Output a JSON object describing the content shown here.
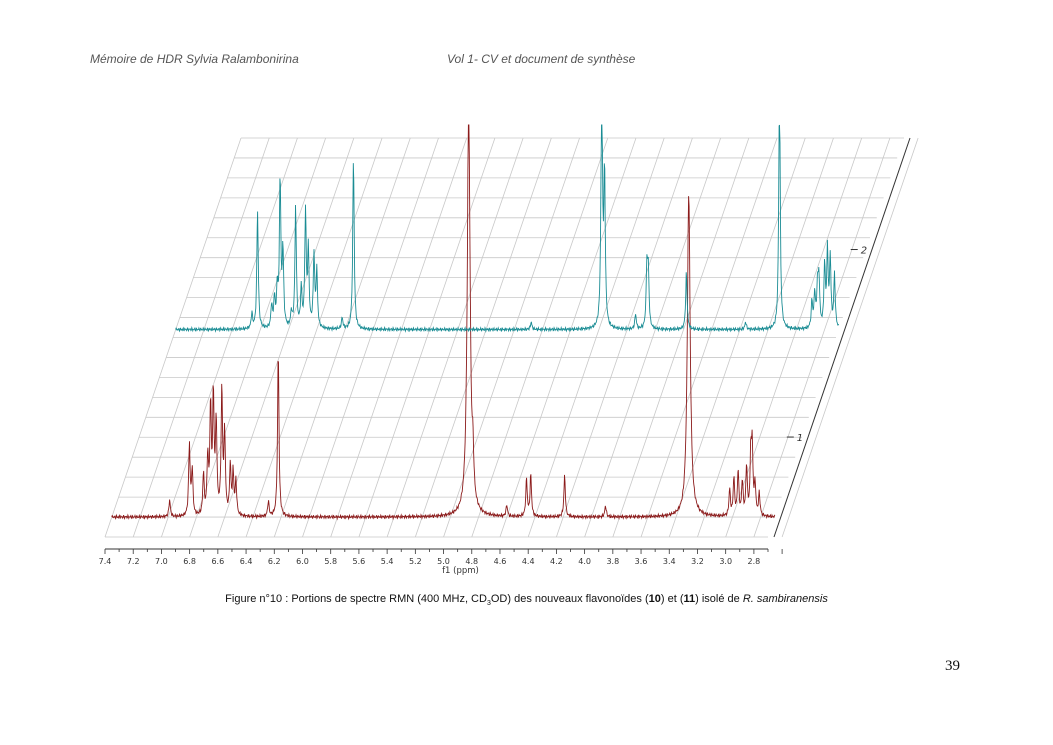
{
  "header": {
    "left": "Mémoire de HDR Sylvia Ralambonirina",
    "right": "Vol 1- CV et document de synthèse"
  },
  "caption": {
    "prefix": "Figure n°10 : Portions de spectre RMN (400 MHz, CD",
    "sub": "3",
    "mid1": "OD) des nouveaux flavonoïdes (",
    "bold1": "10",
    "mid2": ") et (",
    "bold2": "11",
    "mid3": ") isolé de ",
    "italic": "R. sambiranensis"
  },
  "page_number": "39",
  "colors": {
    "trace1": "#8b1a1a",
    "trace2": "#1a8c94",
    "grid": "#c8c8c8",
    "axis": "#333333"
  },
  "chart_data": {
    "type": "line",
    "subtype": "stacked NMR spectra (3D perspective)",
    "xlabel": "f1 (ppm)",
    "x_reversed": true,
    "xlim": [
      7.4,
      2.7
    ],
    "xticks": [
      "7.4",
      "7.2",
      "7.0",
      "6.8",
      "6.6",
      "6.4",
      "6.2",
      "6.0",
      "5.8",
      "5.6",
      "5.4",
      "5.2",
      "5.0",
      "4.8",
      "4.6",
      "4.4",
      "4.2",
      "4.0",
      "3.8",
      "3.6",
      "3.4",
      "3.2",
      "3.0",
      "2.8"
    ],
    "zticks": [
      "1",
      "2"
    ],
    "series": [
      {
        "name": "1",
        "color": "#8b1a1a",
        "peaks": [
          [
            6.99,
            0.09
          ],
          [
            6.85,
            0.38
          ],
          [
            6.83,
            0.24
          ],
          [
            6.75,
            0.22
          ],
          [
            6.72,
            0.3
          ],
          [
            6.7,
            0.56
          ],
          [
            6.68,
            0.62
          ],
          [
            6.66,
            0.48
          ],
          [
            6.62,
            0.66
          ],
          [
            6.6,
            0.42
          ],
          [
            6.56,
            0.26
          ],
          [
            6.54,
            0.22
          ],
          [
            6.52,
            0.18
          ],
          [
            6.29,
            0.08
          ],
          [
            6.22,
            0.88
          ],
          [
            4.87,
            2.2
          ],
          [
            4.84,
            0.2
          ],
          [
            4.6,
            0.06
          ],
          [
            4.46,
            0.2
          ],
          [
            4.43,
            0.22
          ],
          [
            4.19,
            0.22
          ],
          [
            3.9,
            0.06
          ],
          [
            3.31,
            1.7
          ],
          [
            3.02,
            0.14
          ],
          [
            2.99,
            0.2
          ],
          [
            2.96,
            0.24
          ],
          [
            2.93,
            0.18
          ],
          [
            2.9,
            0.26
          ],
          [
            2.87,
            0.32
          ],
          [
            2.86,
            0.34
          ],
          [
            2.84,
            0.16
          ],
          [
            2.81,
            0.12
          ]
        ]
      },
      {
        "name": "2",
        "color": "#1a8c94",
        "peaks": [
          [
            6.86,
            0.08
          ],
          [
            6.82,
            0.63
          ],
          [
            6.72,
            0.12
          ],
          [
            6.7,
            0.15
          ],
          [
            6.68,
            0.2
          ],
          [
            6.66,
            0.78
          ],
          [
            6.64,
            0.4
          ],
          [
            6.58,
            0.08
          ],
          [
            6.55,
            0.64
          ],
          [
            6.51,
            0.2
          ],
          [
            6.48,
            0.6
          ],
          [
            6.46,
            0.4
          ],
          [
            6.42,
            0.38
          ],
          [
            6.4,
            0.3
          ],
          [
            6.22,
            0.06
          ],
          [
            6.14,
            0.9
          ],
          [
            4.88,
            0.04
          ],
          [
            4.38,
            1.4
          ],
          [
            4.36,
            0.8
          ],
          [
            4.14,
            0.08
          ],
          [
            4.06,
            0.32
          ],
          [
            4.05,
            0.3
          ],
          [
            3.78,
            0.3
          ],
          [
            3.36,
            0.04
          ],
          [
            3.12,
            1.35
          ],
          [
            2.89,
            0.14
          ],
          [
            2.87,
            0.18
          ],
          [
            2.85,
            0.22
          ],
          [
            2.84,
            0.24
          ],
          [
            2.8,
            0.32
          ],
          [
            2.78,
            0.4
          ],
          [
            2.76,
            0.36
          ],
          [
            2.73,
            0.28
          ]
        ]
      }
    ]
  }
}
